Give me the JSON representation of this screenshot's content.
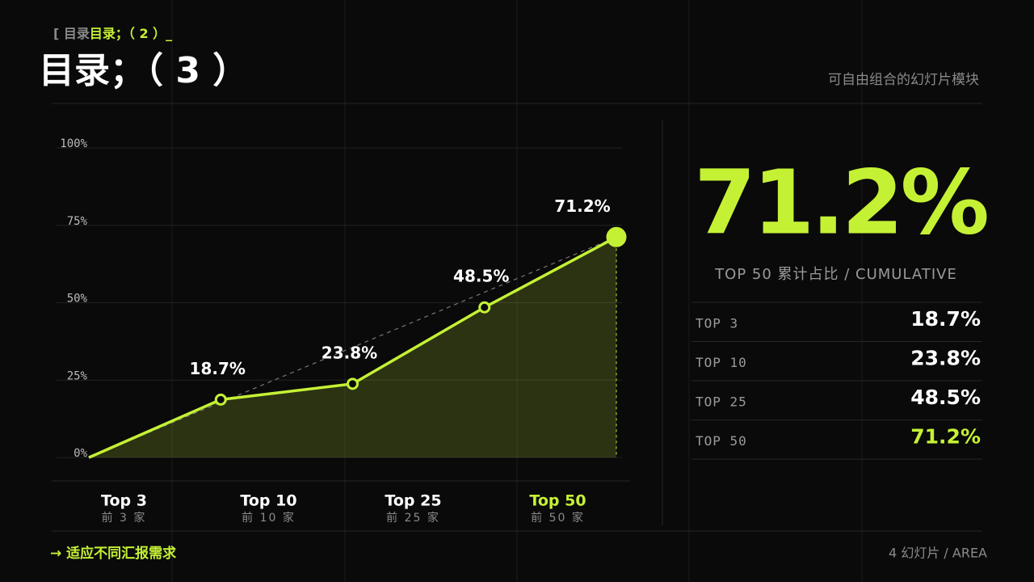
{
  "header": {
    "breadcrumb": [
      "[ 目录",
      "目录；（ 2 ）_"
    ],
    "title": "目录；（ 3 ）",
    "subtitle": "可自由组合的幻灯片模块"
  },
  "chart_data": {
    "type": "area",
    "categories": [
      null,
      "Top 3",
      "Top 10",
      "Top 25",
      "Top 50"
    ],
    "category_sublabels": [
      null,
      "前 3 家",
      "前 10 家",
      "前 25 家",
      "前 50 家"
    ],
    "values": [
      0,
      18.7,
      23.8,
      48.5,
      71.2
    ],
    "value_labels": [
      null,
      "18.7%",
      "23.8%",
      "48.5%",
      "71.2%"
    ],
    "color": "#c5f135",
    "ylim": [
      0,
      100
    ],
    "yticks": [
      {
        "value": 0,
        "label": "0%"
      },
      {
        "value": 25,
        "label": "25%"
      },
      {
        "value": 50,
        "label": "50%"
      },
      {
        "value": 75,
        "label": "75%"
      },
      {
        "value": 100,
        "label": "100%"
      }
    ],
    "grid": true
  },
  "highlight": {
    "value": "71.2%",
    "caption": "TOP 50  累计占比 / CUMULATIVE"
  },
  "table": {
    "rows": [
      [
        "TOP 3",
        "18.7%"
      ],
      [
        "TOP 10",
        "23.8%"
      ],
      [
        "TOP 25",
        "48.5%"
      ],
      [
        "TOP 50",
        "71.2%"
      ]
    ]
  },
  "footer": {
    "left": "→ 适应不同汇报需求",
    "right": "4  幻灯片 / AREA"
  }
}
